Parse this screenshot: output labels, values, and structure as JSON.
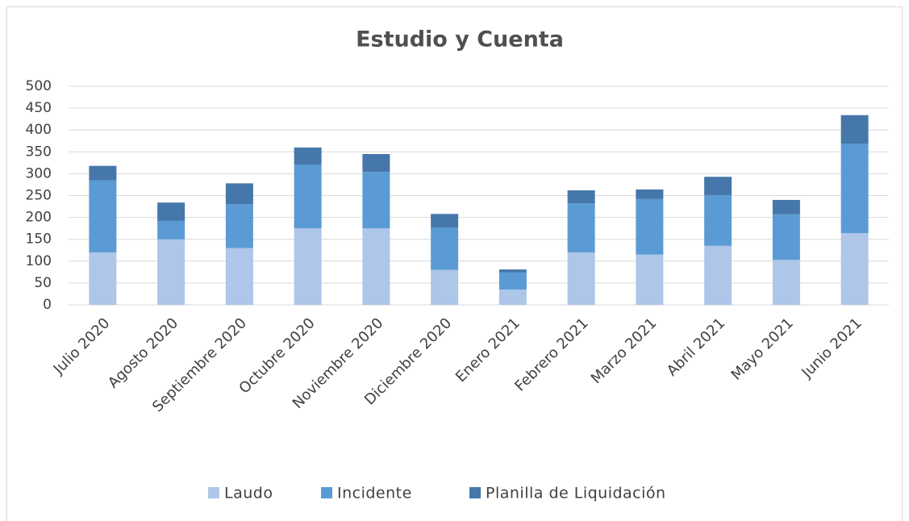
{
  "chart_data": {
    "type": "stacked_bar",
    "title": "Estudio y Cuenta",
    "categories": [
      "Julio 2020",
      "Agosto 2020",
      "Septiembre 2020",
      "Octubre 2020",
      "Noviembre 2020",
      "Diciembre 2020",
      "Enero 2021",
      "Febrero 2021",
      "Marzo 2021",
      "Abril 2021",
      "Mayo 2021",
      "Junio 2021"
    ],
    "series": [
      {
        "name": "Laudo",
        "color": "#aec6e8",
        "values": [
          120,
          150,
          130,
          175,
          175,
          80,
          35,
          120,
          115,
          135,
          103,
          164
        ]
      },
      {
        "name": "Incidente",
        "color": "#5b9bd5",
        "values": [
          165,
          42,
          100,
          146,
          129,
          97,
          39,
          112,
          127,
          116,
          104,
          205
        ]
      },
      {
        "name": "Planilla de Liquidación",
        "color": "#4677aa",
        "values": [
          33,
          42,
          48,
          39,
          41,
          31,
          7,
          30,
          22,
          42,
          33,
          65
        ]
      }
    ],
    "ylim": [
      0,
      500
    ],
    "yticks": [
      0,
      50,
      100,
      150,
      200,
      250,
      300,
      350,
      400,
      450,
      500
    ],
    "grid": true,
    "legend": "bottom"
  }
}
